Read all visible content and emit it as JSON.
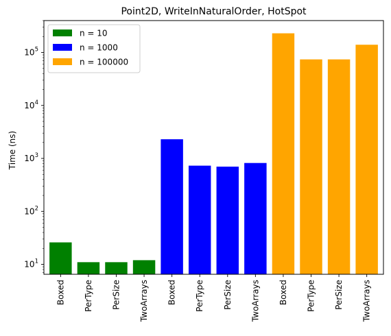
{
  "chart_data": {
    "type": "bar",
    "title": "Point2D, WriteInNaturalOrder, HotSpot",
    "xlabel": "",
    "ylabel": "Time (ns)",
    "yscale": "log",
    "ylim": [
      6.5,
      400000
    ],
    "yticks": [
      {
        "value": 10,
        "base": "10",
        "exp": "1"
      },
      {
        "value": 100,
        "base": "10",
        "exp": "2"
      },
      {
        "value": 1000,
        "base": "10",
        "exp": "3"
      },
      {
        "value": 10000,
        "base": "10",
        "exp": "4"
      },
      {
        "value": 100000,
        "base": "10",
        "exp": "5"
      }
    ],
    "categories": [
      "Boxed",
      "PerType",
      "PerSize",
      "TwoArrays",
      "Boxed",
      "PerType",
      "PerSize",
      "TwoArrays",
      "Boxed",
      "PerType",
      "PerSize",
      "TwoArrays"
    ],
    "series": [
      {
        "name": "n = 10",
        "color": "#008000",
        "values": [
          26,
          11,
          11,
          12,
          null,
          null,
          null,
          null,
          null,
          null,
          null,
          null
        ]
      },
      {
        "name": "n = 1000",
        "color": "#0000ff",
        "values": [
          null,
          null,
          null,
          null,
          2300,
          730,
          700,
          820,
          null,
          null,
          null,
          null
        ]
      },
      {
        "name": "n = 100000",
        "color": "#ffa500",
        "values": [
          null,
          null,
          null,
          null,
          null,
          null,
          null,
          null,
          230000,
          74000,
          74000,
          140000
        ]
      }
    ],
    "legend": "top-left",
    "grid": false
  }
}
